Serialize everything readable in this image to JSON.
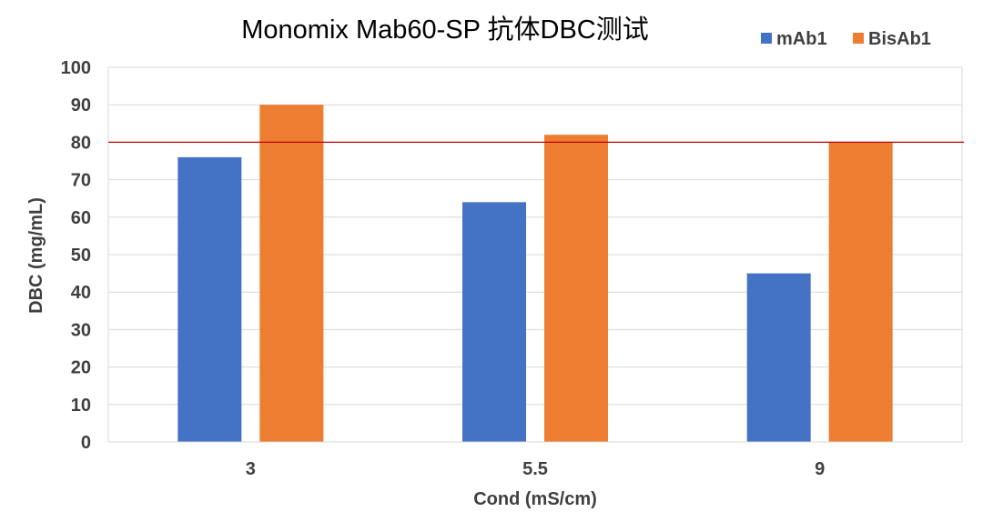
{
  "chart_data": {
    "type": "bar",
    "title": "Monomix Mab60-SP 抗体DBC测试",
    "xlabel": "Cond (mS/cm)",
    "ylabel": "DBC (mg/mL)",
    "categories": [
      "3",
      "5.5",
      "9"
    ],
    "series": [
      {
        "name": "mAb1",
        "values": [
          76,
          64,
          45
        ],
        "color": "#4472C4"
      },
      {
        "name": "BisAb1",
        "values": [
          90,
          82,
          80
        ],
        "color": "#ED7D31"
      }
    ],
    "ylim": [
      0,
      100
    ],
    "yticks": [
      0,
      10,
      20,
      30,
      40,
      50,
      60,
      70,
      80,
      90,
      100
    ],
    "grid": true,
    "legend_position": "top-right",
    "reference_line": {
      "value": 80,
      "color": "#C00000"
    },
    "gridline_color": "#D9D9D9"
  }
}
